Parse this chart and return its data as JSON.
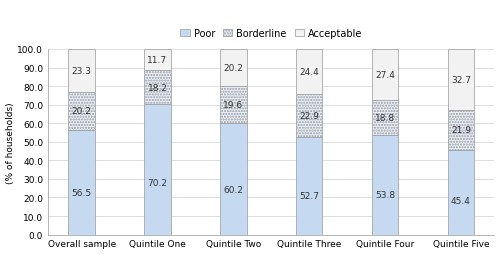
{
  "categories": [
    "Overall sample",
    "Quintile One",
    "Quintile Two",
    "Quintile Three",
    "Quintile Four",
    "Quintile Five"
  ],
  "poor": [
    56.5,
    70.2,
    60.2,
    52.7,
    53.8,
    45.4
  ],
  "borderline": [
    20.2,
    18.2,
    19.6,
    22.9,
    18.8,
    21.9
  ],
  "acceptable": [
    23.3,
    11.7,
    20.2,
    24.4,
    27.4,
    32.7
  ],
  "poor_color": "#c5d9f1",
  "borderline_color": "#e8f0fb",
  "acceptable_color": "#f2f2f2",
  "edge_color": "#999999",
  "ylabel": "(% of households)",
  "ylim": [
    0,
    100
  ],
  "yticks": [
    0.0,
    10.0,
    20.0,
    30.0,
    40.0,
    50.0,
    60.0,
    70.0,
    80.0,
    90.0,
    100.0
  ],
  "bar_width": 0.35,
  "label_fontsize": 6.5,
  "tick_fontsize": 6.5,
  "legend_fontsize": 7
}
